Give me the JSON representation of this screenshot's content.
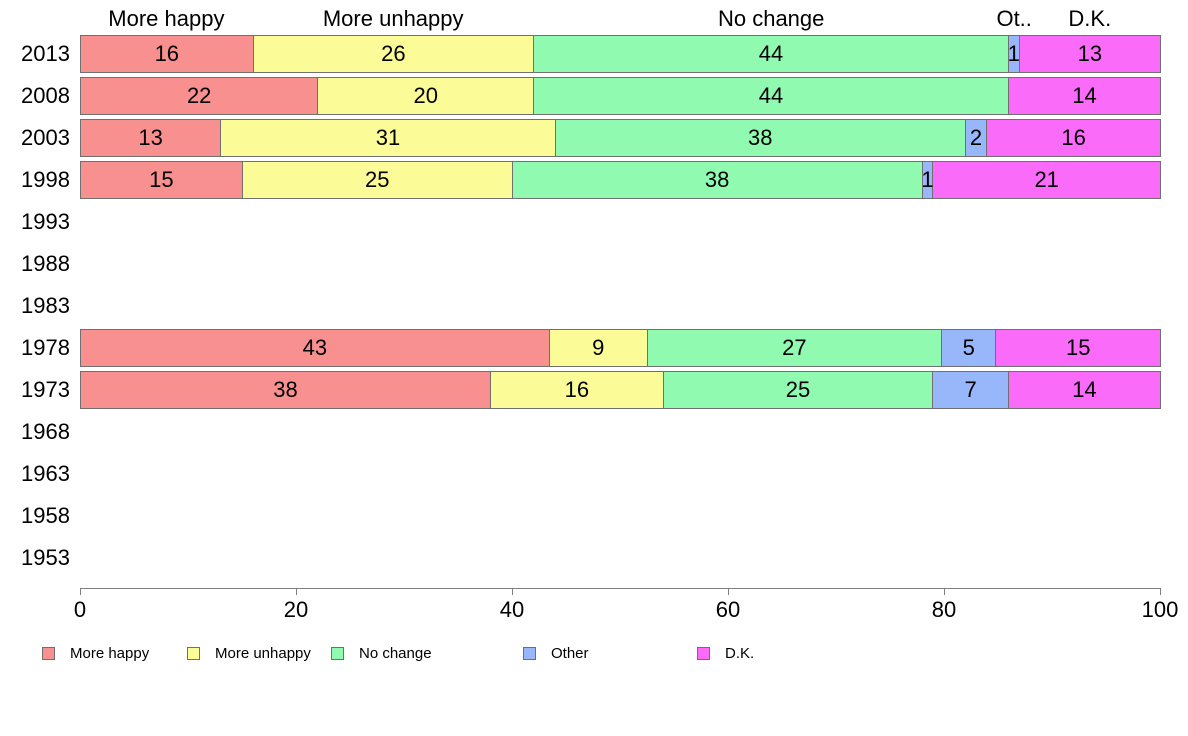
{
  "chart_data": {
    "type": "bar",
    "stacked": true,
    "orientation": "horizontal",
    "normalized_percent": true,
    "title": "",
    "xlabel": "",
    "ylabel": "",
    "xlim": [
      0,
      100
    ],
    "grid": false,
    "legend_position": "bottom",
    "categories": [
      "2013",
      "2008",
      "2003",
      "1998",
      "1993",
      "1988",
      "1983",
      "1978",
      "1973",
      "1968",
      "1963",
      "1958",
      "1953"
    ],
    "series": [
      {
        "name": "More happy",
        "color": "#F89090",
        "values": [
          16,
          22,
          13,
          15,
          null,
          null,
          null,
          43,
          38,
          null,
          null,
          null,
          null
        ]
      },
      {
        "name": "More unhappy",
        "color": "#FBFB97",
        "values": [
          26,
          20,
          31,
          25,
          null,
          null,
          null,
          9,
          16,
          null,
          null,
          null,
          null
        ]
      },
      {
        "name": "No change",
        "color": "#90FAB0",
        "values": [
          44,
          44,
          38,
          38,
          null,
          null,
          null,
          27,
          25,
          null,
          null,
          null,
          null
        ]
      },
      {
        "name": "Other",
        "color": "#97B7FA",
        "values": [
          1,
          0,
          2,
          1,
          null,
          null,
          null,
          5,
          7,
          null,
          null,
          null,
          null
        ]
      },
      {
        "name": "D.K.",
        "color": "#FA6BFA",
        "values": [
          13,
          14,
          16,
          21,
          null,
          null,
          null,
          15,
          14,
          null,
          null,
          null,
          null
        ]
      }
    ],
    "column_headers": [
      "More happy",
      "More unhappy",
      "No change",
      "Ot..",
      "D.K."
    ],
    "x_ticks": [
      "0",
      "20",
      "40",
      "60",
      "80",
      "100"
    ],
    "legend": [
      {
        "label": "More happy",
        "color": "#F89090"
      },
      {
        "label": "More unhappy",
        "color": "#FBFB97"
      },
      {
        "label": "No change",
        "color": "#90FAB0"
      },
      {
        "label": "Other",
        "color": "#97B7FA"
      },
      {
        "label": "D.K.",
        "color": "#FA6BFA"
      }
    ]
  }
}
